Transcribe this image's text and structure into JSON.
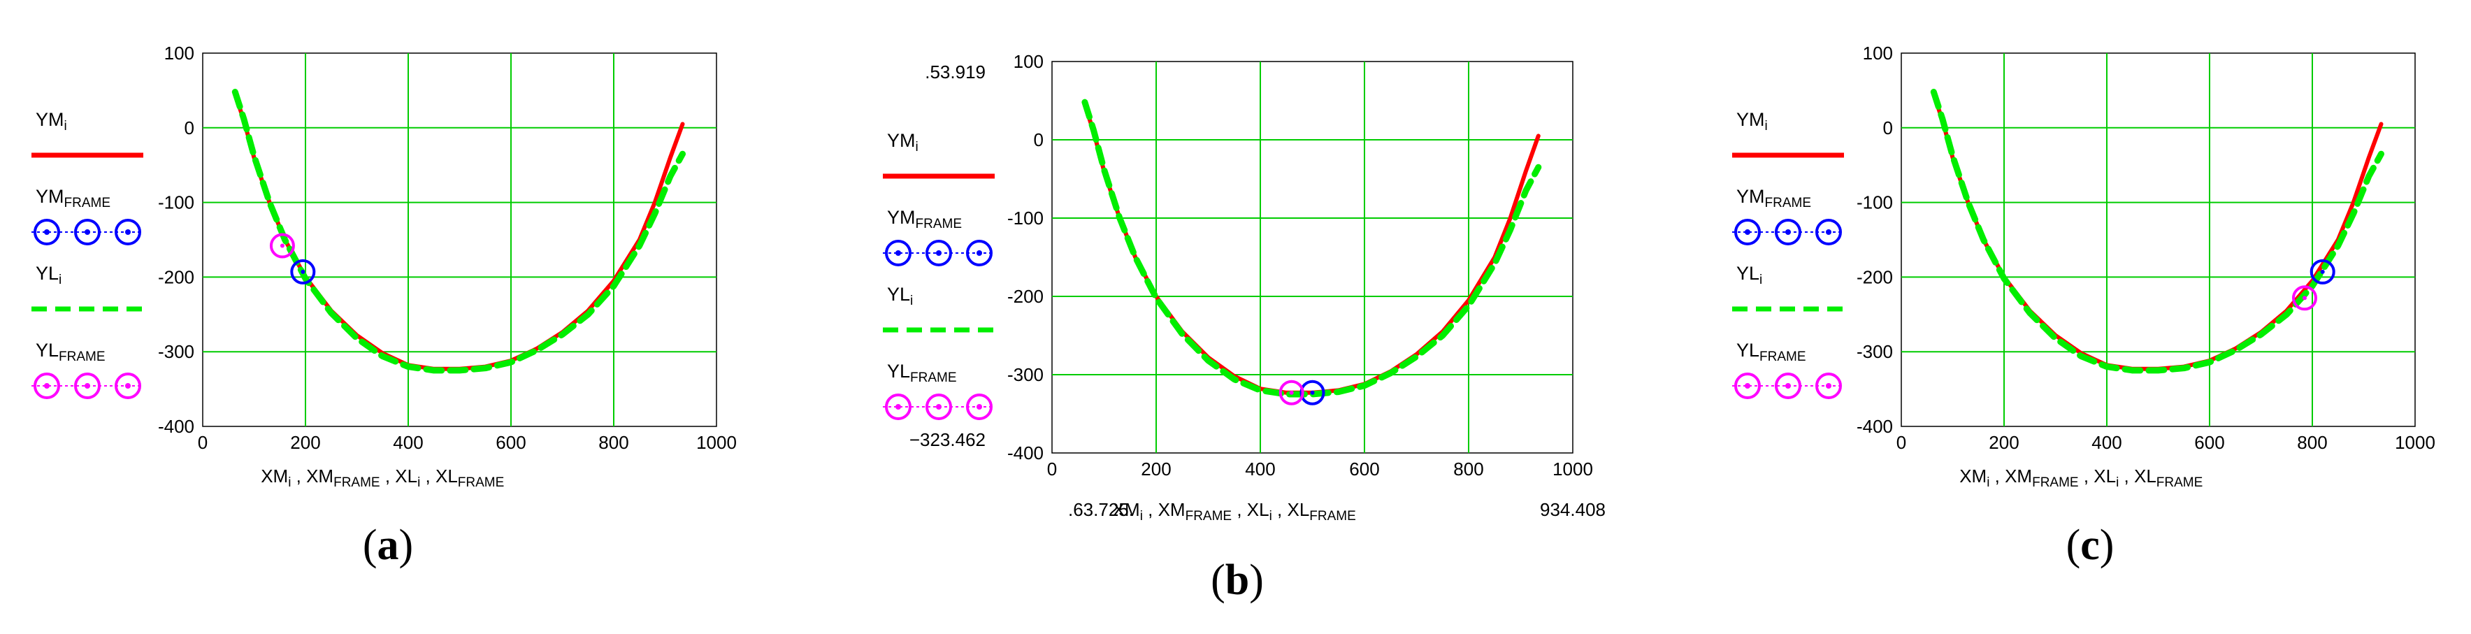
{
  "chart_data": [
    {
      "type": "line",
      "panel": "a",
      "caption_open": "(",
      "caption_letter": "a",
      "caption_close": ")",
      "xlim": [
        0,
        1000
      ],
      "ylim": [
        -400,
        100
      ],
      "xticks": [
        0,
        200,
        400,
        600,
        800,
        1000
      ],
      "yticks": [
        100,
        0,
        -100,
        -200,
        -300,
        -400
      ],
      "grid": true,
      "xlabel": [
        "XM",
        "i",
        " , XM",
        "FRAME",
        " , XL",
        "i",
        " , XL",
        "FRAME"
      ],
      "legend": [
        {
          "name": "YM",
          "sub": "i",
          "style": "solid",
          "color": "#ff0000"
        },
        {
          "name": "YM",
          "sub": "FRAME",
          "style": "circles",
          "color": "#0000ff"
        },
        {
          "name": "YL",
          "sub": "i",
          "style": "dashed",
          "color": "#00ee00"
        },
        {
          "name": "YL",
          "sub": "FRAME",
          "style": "circles",
          "color": "#ff00ff"
        }
      ],
      "series": [
        {
          "name": "YM_i",
          "color": "#ff0000",
          "x": [
            63,
            80,
            100,
            130,
            160,
            200,
            250,
            300,
            350,
            400,
            450,
            500,
            550,
            600,
            650,
            700,
            750,
            800,
            850,
            880,
            910,
            934
          ],
          "y": [
            45,
            10,
            -40,
            -100,
            -150,
            -200,
            -245,
            -278,
            -302,
            -318,
            -323,
            -323,
            -320,
            -312,
            -296,
            -274,
            -245,
            -205,
            -150,
            -100,
            -40,
            5
          ]
        },
        {
          "name": "YL_i",
          "color": "#00ee00",
          "x": [
            63,
            80,
            100,
            130,
            160,
            200,
            250,
            300,
            350,
            400,
            450,
            500,
            550,
            600,
            650,
            700,
            750,
            800,
            850,
            880,
            910,
            934
          ],
          "y": [
            48,
            12,
            -38,
            -100,
            -150,
            -202,
            -248,
            -282,
            -306,
            -320,
            -325,
            -325,
            -322,
            -314,
            -298,
            -277,
            -250,
            -212,
            -158,
            -115,
            -65,
            -35
          ]
        },
        {
          "name": "YM_FRAME",
          "color": "#0000ff",
          "x": [
            195
          ],
          "y": [
            -193
          ]
        },
        {
          "name": "YL_FRAME",
          "color": "#ff00ff",
          "x": [
            155
          ],
          "y": [
            -158
          ]
        }
      ]
    },
    {
      "type": "line",
      "panel": "b",
      "caption_open": "(",
      "caption_letter": "b",
      "caption_close": ")",
      "xlim": [
        0,
        1000
      ],
      "ylim": [
        -400,
        100
      ],
      "xticks": [
        0,
        200,
        400,
        600,
        800,
        1000
      ],
      "yticks": [
        100,
        0,
        -100,
        -200,
        -300,
        -400
      ],
      "grid": true,
      "ymax_label": ".53.919",
      "ymin_label": "−323.462",
      "xmin_label": ".63.725.",
      "xmax_label": "934.408",
      "xlabel": [
        "XM",
        "i",
        " , XM",
        "FRAME",
        " , XL",
        "i",
        " , XL",
        "FRAME"
      ],
      "legend": [
        {
          "name": "YM",
          "sub": "i",
          "style": "solid",
          "color": "#ff0000"
        },
        {
          "name": "YM",
          "sub": "FRAME",
          "style": "circles",
          "color": "#0000ff"
        },
        {
          "name": "YL",
          "sub": "i",
          "style": "dashed",
          "color": "#00ee00"
        },
        {
          "name": "YL",
          "sub": "FRAME",
          "style": "circles",
          "color": "#ff00ff"
        }
      ],
      "series": [
        {
          "name": "YM_i",
          "color": "#ff0000",
          "x": [
            63,
            80,
            100,
            130,
            160,
            200,
            250,
            300,
            350,
            400,
            450,
            500,
            550,
            600,
            650,
            700,
            750,
            800,
            850,
            880,
            910,
            934
          ],
          "y": [
            45,
            10,
            -40,
            -100,
            -150,
            -200,
            -245,
            -278,
            -302,
            -318,
            -323,
            -323,
            -320,
            -312,
            -296,
            -274,
            -245,
            -205,
            -150,
            -100,
            -40,
            5
          ]
        },
        {
          "name": "YL_i",
          "color": "#00ee00",
          "x": [
            63,
            80,
            100,
            130,
            160,
            200,
            250,
            300,
            350,
            400,
            450,
            500,
            550,
            600,
            650,
            700,
            750,
            800,
            850,
            880,
            910,
            934
          ],
          "y": [
            48,
            12,
            -38,
            -100,
            -150,
            -202,
            -248,
            -282,
            -306,
            -320,
            -325,
            -325,
            -322,
            -314,
            -298,
            -277,
            -250,
            -212,
            -158,
            -115,
            -65,
            -35
          ]
        },
        {
          "name": "YM_FRAME",
          "color": "#0000ff",
          "x": [
            500
          ],
          "y": [
            -323
          ]
        },
        {
          "name": "YL_FRAME",
          "color": "#ff00ff",
          "x": [
            460
          ],
          "y": [
            -323
          ]
        }
      ]
    },
    {
      "type": "line",
      "panel": "c",
      "caption_open": "(",
      "caption_letter": "c",
      "caption_close": ")",
      "xlim": [
        0,
        1000
      ],
      "ylim": [
        -400,
        100
      ],
      "xticks": [
        0,
        200,
        400,
        600,
        800,
        1000
      ],
      "yticks": [
        100,
        0,
        -100,
        -200,
        -300,
        -400
      ],
      "grid": true,
      "xlabel": [
        "XM",
        "i",
        " , XM",
        "FRAME",
        " , XL",
        "i",
        " , XL",
        "FRAME"
      ],
      "legend": [
        {
          "name": "YM",
          "sub": "i",
          "style": "solid",
          "color": "#ff0000"
        },
        {
          "name": "YM",
          "sub": "FRAME",
          "style": "circles",
          "color": "#0000ff"
        },
        {
          "name": "YL",
          "sub": "i",
          "style": "dashed",
          "color": "#00ee00"
        },
        {
          "name": "YL",
          "sub": "FRAME",
          "style": "circles",
          "color": "#ff00ff"
        }
      ],
      "series": [
        {
          "name": "YM_i",
          "color": "#ff0000",
          "x": [
            63,
            80,
            100,
            130,
            160,
            200,
            250,
            300,
            350,
            400,
            450,
            500,
            550,
            600,
            650,
            700,
            750,
            800,
            850,
            880,
            910,
            934
          ],
          "y": [
            45,
            10,
            -40,
            -100,
            -150,
            -200,
            -245,
            -278,
            -302,
            -318,
            -323,
            -323,
            -320,
            -312,
            -296,
            -274,
            -245,
            -205,
            -150,
            -100,
            -40,
            5
          ]
        },
        {
          "name": "YL_i",
          "color": "#00ee00",
          "x": [
            63,
            80,
            100,
            130,
            160,
            200,
            250,
            300,
            350,
            400,
            450,
            500,
            550,
            600,
            650,
            700,
            750,
            800,
            850,
            880,
            910,
            934
          ],
          "y": [
            48,
            12,
            -38,
            -100,
            -150,
            -202,
            -248,
            -282,
            -306,
            -320,
            -325,
            -325,
            -322,
            -314,
            -298,
            -277,
            -250,
            -212,
            -158,
            -115,
            -65,
            -35
          ]
        },
        {
          "name": "YM_FRAME",
          "color": "#0000ff",
          "x": [
            820
          ],
          "y": [
            -193
          ]
        },
        {
          "name": "YL_FRAME",
          "color": "#ff00ff",
          "x": [
            785
          ],
          "y": [
            -228
          ]
        }
      ]
    }
  ]
}
